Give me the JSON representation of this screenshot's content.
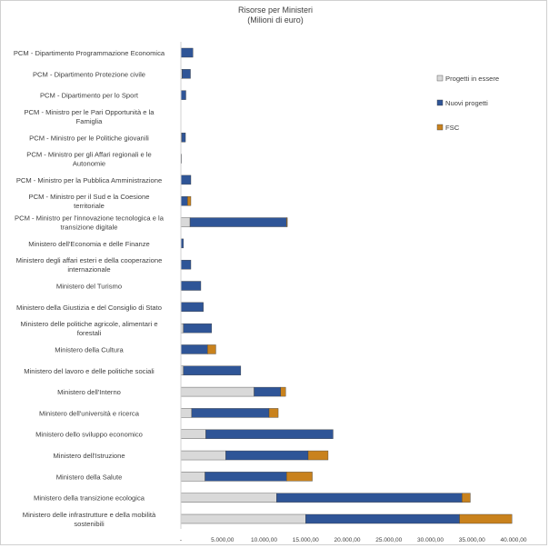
{
  "chart_data": {
    "type": "bar",
    "orientation": "horizontal",
    "stacked": true,
    "title": "Risorse per Ministeri",
    "subtitle": "(Milioni di euro)",
    "xlabel": "",
    "ylabel": "",
    "xlim": [
      0,
      40000
    ],
    "x_ticks": [
      0,
      5000,
      10000,
      15000,
      20000,
      25000,
      30000,
      35000,
      40000
    ],
    "x_tick_labels": [
      "-",
      "5.000,00",
      "10.000,00",
      "15.000,00",
      "20.000,00",
      "25.000,00",
      "30.000,00",
      "35.000,00",
      "40.000,00"
    ],
    "grid": false,
    "legend_position": "right",
    "categories": [
      "PCM - Dipartimento Programmazione Economica",
      "PCM - Dipartimento Protezione civile",
      "PCM - Dipartimento per lo Sport",
      "PCM - Ministro per le Pari Opportunità e la Famiglia",
      "PCM - Ministro per le Politiche giovanili",
      "PCM - Ministro per gli Affari regionali e le Autonomie",
      "PCM - Ministro per la Pubblica Amministrazione",
      "PCM - Ministro per il Sud e la Coesione territoriale",
      "PCM - Ministro per l'innovazione tecnologica e la transizione digitale",
      "Ministero dell'Economia e delle Finanze",
      "Ministero degli affari esteri e della cooperazione internazionale",
      "Ministero del Turismo",
      "Ministero della Giustizia e del Consiglio di Stato",
      "Ministero delle politiche agricole, alimentari e forestali",
      "Ministero della Cultura",
      "Ministero del lavoro e delle politiche sociali",
      "Ministero dell'Interno",
      "Ministero dell'università e ricerca",
      "Ministero dello sviluppo economico",
      "Ministero dell'Istruzione",
      "Ministero della Salute",
      "Ministero della transizione ecologica",
      "Ministero delle infrastrutture e della mobilità sostenibili"
    ],
    "series": [
      {
        "name": "Progetti in essere",
        "color": "#d9d9d9",
        "values": [
          0,
          150,
          0,
          0,
          100,
          0,
          0,
          0,
          1100,
          0,
          0,
          0,
          0,
          300,
          0,
          300,
          8800,
          1300,
          3000,
          5400,
          2900,
          11500,
          15000
        ]
      },
      {
        "name": "Nuovi progetti",
        "color": "#2f5597",
        "values": [
          1450,
          1000,
          600,
          0,
          450,
          80,
          1200,
          800,
          11600,
          300,
          1200,
          2400,
          2700,
          3400,
          3200,
          6900,
          3200,
          9300,
          15300,
          9900,
          9800,
          22300,
          18500
        ]
      },
      {
        "name": "FSC",
        "color": "#c9821d",
        "values": [
          0,
          0,
          0,
          0,
          0,
          0,
          0,
          400,
          100,
          0,
          0,
          0,
          0,
          0,
          1000,
          0,
          600,
          1100,
          0,
          2400,
          3100,
          1000,
          6300
        ]
      }
    ]
  }
}
